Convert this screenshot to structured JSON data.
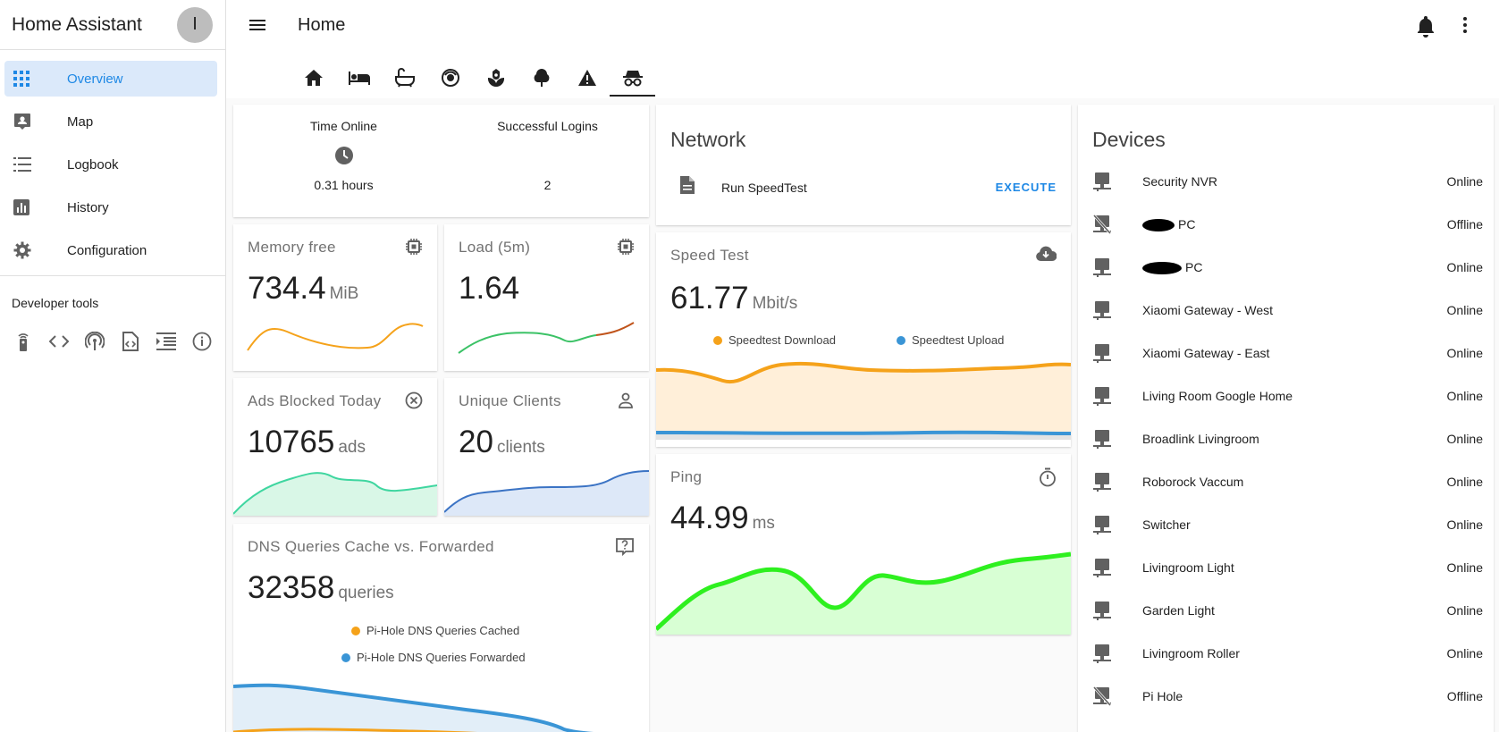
{
  "sidebar": {
    "title": "Home Assistant",
    "avatar_letter": "I",
    "items": [
      {
        "label": "Overview",
        "icon": "grid-icon"
      },
      {
        "label": "Map",
        "icon": "map-account-icon"
      },
      {
        "label": "Logbook",
        "icon": "list-icon"
      },
      {
        "label": "History",
        "icon": "chart-icon"
      },
      {
        "label": "Configuration",
        "icon": "gear-icon"
      }
    ],
    "dev_tools_label": "Developer tools",
    "dev_tools": [
      "remote-icon",
      "code-icon",
      "antenna-icon",
      "file-code-icon",
      "template-icon",
      "info-icon"
    ]
  },
  "header": {
    "title": "Home",
    "tabs": [
      "home-icon",
      "bed-icon",
      "bathtub-icon",
      "robot-vacuum-icon",
      "flower-icon",
      "tree-icon",
      "alert-icon",
      "incognito-icon"
    ]
  },
  "stats": {
    "time_online": {
      "label": "Time Online",
      "value": "0.31 hours"
    },
    "logins": {
      "label": "Successful Logins",
      "value": "2"
    }
  },
  "sensors": {
    "memory": {
      "name": "Memory free",
      "value": "734.4",
      "unit": "MiB"
    },
    "load": {
      "name": "Load (5m)",
      "value": "1.64",
      "unit": ""
    },
    "ads": {
      "name": "Ads Blocked Today",
      "value": "10765",
      "unit": "ads"
    },
    "clients": {
      "name": "Unique Clients",
      "value": "20",
      "unit": "clients"
    },
    "dns": {
      "name": "DNS Queries Cache vs. Forwarded",
      "value": "32358",
      "unit": "queries",
      "legend": [
        "Pi-Hole DNS Queries Cached",
        "Pi-Hole DNS Queries Forwarded"
      ]
    },
    "speed": {
      "name": "Speed Test",
      "value": "61.77",
      "unit": "Mbit/s",
      "legend": [
        "Speedtest Download",
        "Speedtest Upload"
      ]
    },
    "ping": {
      "name": "Ping",
      "value": "44.99",
      "unit": "ms"
    }
  },
  "network": {
    "title": "Network",
    "script_name": "Run SpeedTest",
    "action": "EXECUTE"
  },
  "devices": {
    "title": "Devices",
    "rows": [
      {
        "name": "Security NVR",
        "state": "Online"
      },
      {
        "name": "PC",
        "state": "Offline"
      },
      {
        "name": "PC",
        "state": "Online"
      },
      {
        "name": "Xiaomi Gateway - West",
        "state": "Online"
      },
      {
        "name": "Xiaomi Gateway - East",
        "state": "Online"
      },
      {
        "name": "Living Room Google Home",
        "state": "Online"
      },
      {
        "name": "Broadlink Livingroom",
        "state": "Online"
      },
      {
        "name": "Roborock Vaccum",
        "state": "Online"
      },
      {
        "name": "Switcher",
        "state": "Online"
      },
      {
        "name": "Livingroom Light",
        "state": "Online"
      },
      {
        "name": "Garden Light",
        "state": "Online"
      },
      {
        "name": "Livingroom Roller",
        "state": "Online"
      },
      {
        "name": "Pi Hole",
        "state": "Offline"
      }
    ]
  },
  "colors": {
    "accent": "#1e88e5",
    "orange": "#f5a21a",
    "blue": "#3a95d6",
    "green": "#3ddc2a"
  }
}
